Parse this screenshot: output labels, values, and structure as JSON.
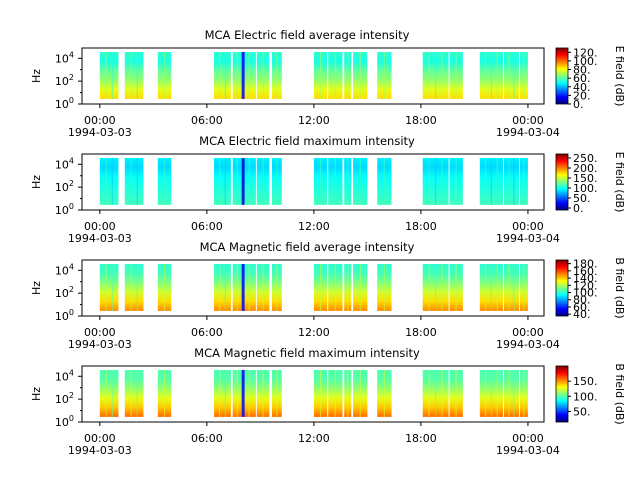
{
  "chart_data": [
    {
      "type": "heatmap",
      "title": "MCA  Electric field average intensity",
      "ylabel": "Hz",
      "colorbar_label": "E field (dB)",
      "colorbar_ticks": [
        "0.",
        "20.",
        "40.",
        "60.",
        "80.",
        "100.",
        "120."
      ],
      "colorbar_range": [
        0,
        130
      ],
      "yticks": [
        "10",
        "10",
        "10"
      ],
      "ytick_exponents": [
        "0",
        "2",
        "4"
      ],
      "y_log_range_exp": [
        0,
        4.9
      ],
      "data_freq_exp": [
        0.45,
        4.55
      ],
      "intensity_profile": "electric-average",
      "xticks": [
        "00:00",
        "06:00",
        "12:00",
        "18:00",
        "00:00"
      ],
      "xtick_dates": [
        "1994-03-03",
        "",
        "",
        "",
        "1994-03-04"
      ],
      "x_range_hours": [
        -1.0,
        24.9
      ],
      "data_intervals_hours": [
        [
          0.0,
          1.05
        ],
        [
          1.4,
          2.45
        ],
        [
          3.25,
          4.0
        ],
        [
          6.4,
          7.35
        ],
        [
          7.45,
          7.95
        ],
        [
          8.0,
          8.75
        ],
        [
          8.8,
          9.5
        ],
        [
          9.65,
          10.2
        ],
        [
          12.0,
          12.75
        ],
        [
          12.8,
          13.6
        ],
        [
          13.7,
          14.1
        ],
        [
          14.2,
          15.0
        ],
        [
          15.55,
          16.35
        ],
        [
          18.1,
          19.55
        ],
        [
          19.6,
          20.35
        ],
        [
          21.3,
          22.6
        ],
        [
          22.65,
          23.5
        ],
        [
          23.55,
          24.0
        ]
      ],
      "grid": false
    },
    {
      "type": "heatmap",
      "title": "MCA  Electric field maximum intensity",
      "ylabel": "Hz",
      "colorbar_label": "E field (dB)",
      "colorbar_ticks": [
        "0.",
        "50.",
        "100.",
        "150.",
        "200.",
        "250."
      ],
      "colorbar_range": [
        -10,
        270
      ],
      "yticks": [
        "10",
        "10",
        "10"
      ],
      "ytick_exponents": [
        "0",
        "2",
        "4"
      ],
      "y_log_range_exp": [
        0,
        4.9
      ],
      "data_freq_exp": [
        0.45,
        4.55
      ],
      "intensity_profile": "electric-maximum",
      "xticks": [
        "00:00",
        "06:00",
        "12:00",
        "18:00",
        "00:00"
      ],
      "xtick_dates": [
        "1994-03-03",
        "",
        "",
        "",
        "1994-03-04"
      ],
      "x_range_hours": [
        -1.0,
        24.9
      ],
      "data_intervals_hours": [
        [
          0.0,
          1.05
        ],
        [
          1.4,
          2.45
        ],
        [
          3.25,
          4.0
        ],
        [
          6.4,
          7.35
        ],
        [
          7.45,
          7.95
        ],
        [
          8.0,
          8.75
        ],
        [
          8.8,
          9.5
        ],
        [
          9.65,
          10.2
        ],
        [
          12.0,
          12.75
        ],
        [
          12.8,
          13.6
        ],
        [
          13.7,
          14.1
        ],
        [
          14.2,
          15.0
        ],
        [
          15.55,
          16.35
        ],
        [
          18.1,
          19.55
        ],
        [
          19.6,
          20.35
        ],
        [
          21.3,
          22.6
        ],
        [
          22.65,
          23.5
        ],
        [
          23.55,
          24.0
        ]
      ],
      "grid": false
    },
    {
      "type": "heatmap",
      "title": "MCA  Magnetic field average intensity",
      "ylabel": "Hz",
      "colorbar_label": "B field (dB)",
      "colorbar_ticks": [
        "40.",
        "60.",
        "80.",
        "100.",
        "120.",
        "140.",
        "160.",
        "180."
      ],
      "colorbar_range": [
        35,
        190
      ],
      "yticks": [
        "10",
        "10",
        "10"
      ],
      "ytick_exponents": [
        "0",
        "2",
        "4"
      ],
      "y_log_range_exp": [
        0,
        4.9
      ],
      "data_freq_exp": [
        0.45,
        4.55
      ],
      "intensity_profile": "magnetic-average",
      "xticks": [
        "00:00",
        "06:00",
        "12:00",
        "18:00",
        "00:00"
      ],
      "xtick_dates": [
        "1994-03-03",
        "",
        "",
        "",
        "1994-03-04"
      ],
      "x_range_hours": [
        -1.0,
        24.9
      ],
      "data_intervals_hours": [
        [
          0.0,
          1.05
        ],
        [
          1.4,
          2.45
        ],
        [
          3.25,
          4.0
        ],
        [
          6.4,
          7.35
        ],
        [
          7.45,
          7.95
        ],
        [
          8.0,
          8.75
        ],
        [
          8.8,
          9.5
        ],
        [
          9.65,
          10.2
        ],
        [
          12.0,
          12.75
        ],
        [
          12.8,
          13.6
        ],
        [
          13.7,
          14.1
        ],
        [
          14.2,
          15.0
        ],
        [
          15.55,
          16.35
        ],
        [
          18.1,
          19.55
        ],
        [
          19.6,
          20.35
        ],
        [
          21.3,
          22.6
        ],
        [
          22.65,
          23.5
        ],
        [
          23.55,
          24.0
        ]
      ],
      "grid": false
    },
    {
      "type": "heatmap",
      "title": "MCA  Magnetic field maximum intensity",
      "ylabel": "Hz",
      "colorbar_label": "B field (dB)",
      "colorbar_ticks": [
        "50.",
        "100.",
        "150."
      ],
      "colorbar_range": [
        15,
        200
      ],
      "yticks": [
        "10",
        "10",
        "10"
      ],
      "ytick_exponents": [
        "0",
        "2",
        "4"
      ],
      "y_log_range_exp": [
        0,
        4.9
      ],
      "data_freq_exp": [
        0.45,
        4.55
      ],
      "intensity_profile": "magnetic-maximum",
      "xticks": [
        "00:00",
        "06:00",
        "12:00",
        "18:00",
        "00:00"
      ],
      "xtick_dates": [
        "1994-03-03",
        "",
        "",
        "",
        "1994-03-04"
      ],
      "x_range_hours": [
        -1.0,
        24.9
      ],
      "data_intervals_hours": [
        [
          0.0,
          1.05
        ],
        [
          1.4,
          2.45
        ],
        [
          3.25,
          4.0
        ],
        [
          6.4,
          7.35
        ],
        [
          7.45,
          7.95
        ],
        [
          8.0,
          8.75
        ],
        [
          8.8,
          9.5
        ],
        [
          9.65,
          10.2
        ],
        [
          12.0,
          12.75
        ],
        [
          12.8,
          13.6
        ],
        [
          13.7,
          14.1
        ],
        [
          14.2,
          15.0
        ],
        [
          15.55,
          16.35
        ],
        [
          18.1,
          19.55
        ],
        [
          19.6,
          20.35
        ],
        [
          21.3,
          22.6
        ],
        [
          22.65,
          23.5
        ],
        [
          23.55,
          24.0
        ]
      ],
      "grid": false
    }
  ]
}
